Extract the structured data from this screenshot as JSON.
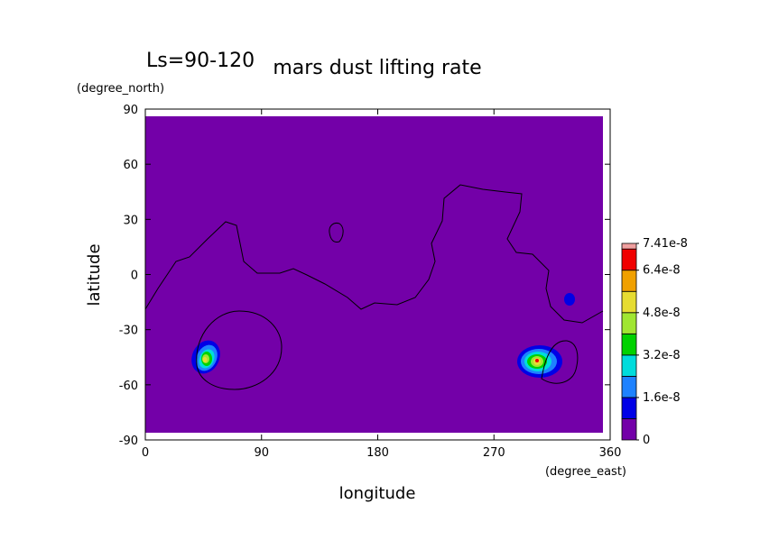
{
  "chart_data": {
    "type": "contour-map",
    "title": "mars dust lifting rate",
    "subtitle": "Ls=90-120",
    "x_label": "longitude",
    "x_unit": "(degree_east)",
    "y_label": "latitude",
    "y_unit": "(degree_north)",
    "xlim": [
      0,
      360
    ],
    "xticks": [
      0,
      90,
      180,
      270,
      360
    ],
    "ylim": [
      -90,
      90
    ],
    "yticks": [
      -90,
      -60,
      -30,
      0,
      30,
      60,
      90
    ],
    "colorbar": {
      "clim": [
        0,
        7.41e-08
      ],
      "levels": [
        0,
        8e-09,
        1.6e-08,
        2.4e-08,
        3.2e-08,
        4e-08,
        4.8e-08,
        5.6e-08,
        6.4e-08,
        7.2e-08,
        7.41e-08
      ],
      "colors": [
        "#7300a8",
        "#0000e6",
        "#1e82ff",
        "#00dcdc",
        "#00d200",
        "#a0e632",
        "#e6dc32",
        "#f0a000",
        "#f00000",
        "#f0a0a0"
      ],
      "ticks": [
        0,
        1.6e-08,
        3.2e-08,
        4.8e-08,
        6.4e-08,
        7.41e-08
      ]
    }
  }
}
